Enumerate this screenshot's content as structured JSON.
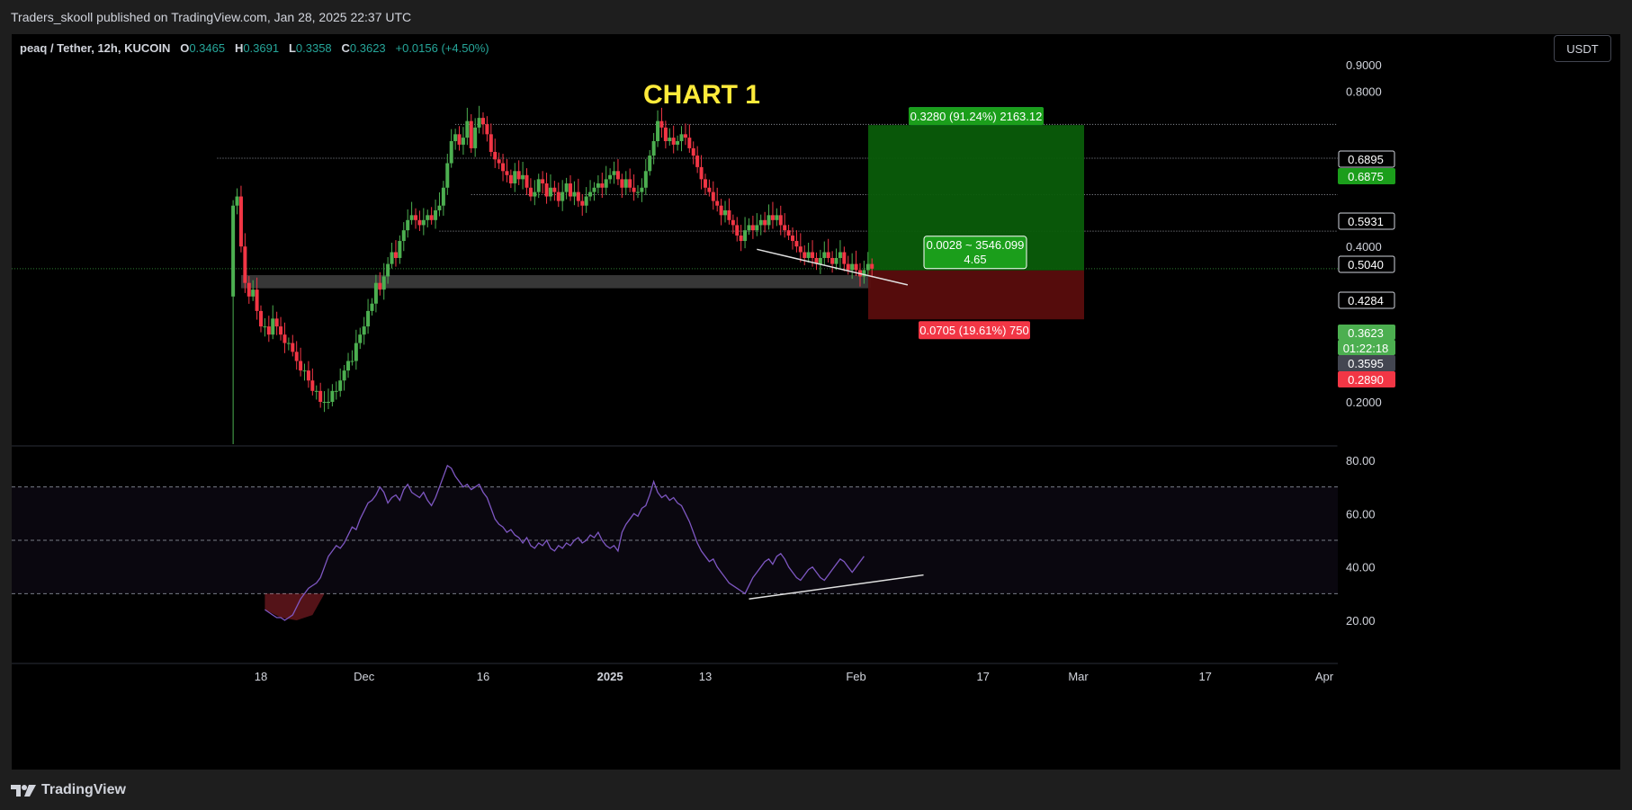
{
  "header": {
    "published_text": "Traders_skooll published on TradingView.com, Jan 28, 2025 22:37 UTC"
  },
  "symbol_bar": {
    "symbol": "peaq / Tether, 12h, KUCOIN",
    "o_label": "O",
    "o_value": "0.3465",
    "h_label": "H",
    "h_value": "0.3691",
    "l_label": "L",
    "l_value": "0.3358",
    "c_label": "C",
    "c_value": "0.3623",
    "change": "+0.0156 (+4.50%)"
  },
  "currency_button": "USDT",
  "footer": {
    "logo_text": "TradingView",
    "logo_icon": "tradingview-logo-icon"
  },
  "colors": {
    "up": "#4caf50",
    "down": "#f23645",
    "rsi": "#7e57c2",
    "target_zone": "#0a5c0a",
    "stop_zone": "#5a0d0d",
    "support_zone": "#4a4a4a",
    "annotation": "#ffeb3b"
  },
  "chart_data": {
    "type": "candlestick",
    "title": "CHART 1",
    "price_axis": {
      "ticks": [
        "0.9000",
        "0.8000",
        "0.4000",
        "0.2000"
      ],
      "scale": "log",
      "labels": [
        {
          "text": "0.6895",
          "value": 0.6895,
          "style": "plain"
        },
        {
          "text": "0.6875",
          "value": 0.6875,
          "style": "green"
        },
        {
          "text": "0.5931",
          "value": 0.5931,
          "style": "plain"
        },
        {
          "text": "0.5040",
          "value": 0.504,
          "style": "plain"
        },
        {
          "text": "0.4284",
          "value": 0.4284,
          "style": "plain"
        },
        {
          "text": "0.3623",
          "value": 0.3623,
          "style": "green-light"
        },
        {
          "text": "01:22:18",
          "value": 0.3623,
          "style": "green-light-countdown"
        },
        {
          "text": "0.3595",
          "value": 0.3595,
          "style": "gray"
        },
        {
          "text": "0.2890",
          "value": 0.289,
          "style": "red"
        }
      ]
    },
    "time_axis": {
      "ticks": [
        {
          "text": "18",
          "date": "2024-11-18",
          "bold": false
        },
        {
          "text": "Dec",
          "date": "2024-12-01",
          "bold": false
        },
        {
          "text": "16",
          "date": "2024-12-16",
          "bold": false
        },
        {
          "text": "2025",
          "date": "2025-01-01",
          "bold": true
        },
        {
          "text": "13",
          "date": "2025-01-13",
          "bold": false
        },
        {
          "text": "Feb",
          "date": "2025-02-01",
          "bold": false
        },
        {
          "text": "17",
          "date": "2025-02-17",
          "bold": false
        },
        {
          "text": "Mar",
          "date": "2025-03-01",
          "bold": false
        },
        {
          "text": "17",
          "date": "2025-03-17",
          "bold": false
        },
        {
          "text": "Apr",
          "date": "2025-04-01",
          "bold": false
        }
      ]
    },
    "candles_close": [
      0.48,
      0.5,
      0.4,
      0.34,
      0.32,
      0.33,
      0.3,
      0.28,
      0.28,
      0.27,
      0.29,
      0.28,
      0.27,
      0.26,
      0.26,
      0.25,
      0.24,
      0.23,
      0.23,
      0.22,
      0.21,
      0.21,
      0.2,
      0.2,
      0.2,
      0.21,
      0.21,
      0.22,
      0.23,
      0.24,
      0.24,
      0.26,
      0.27,
      0.28,
      0.3,
      0.31,
      0.34,
      0.33,
      0.35,
      0.37,
      0.39,
      0.38,
      0.41,
      0.43,
      0.45,
      0.46,
      0.45,
      0.44,
      0.45,
      0.46,
      0.45,
      0.47,
      0.48,
      0.52,
      0.58,
      0.64,
      0.66,
      0.63,
      0.65,
      0.7,
      0.62,
      0.68,
      0.71,
      0.69,
      0.66,
      0.61,
      0.59,
      0.58,
      0.56,
      0.55,
      0.53,
      0.56,
      0.54,
      0.55,
      0.52,
      0.5,
      0.51,
      0.54,
      0.53,
      0.5,
      0.52,
      0.51,
      0.49,
      0.51,
      0.53,
      0.5,
      0.51,
      0.49,
      0.48,
      0.5,
      0.51,
      0.52,
      0.53,
      0.52,
      0.54,
      0.55,
      0.56,
      0.54,
      0.52,
      0.54,
      0.52,
      0.51,
      0.51,
      0.52,
      0.56,
      0.6,
      0.64,
      0.7,
      0.68,
      0.64,
      0.65,
      0.63,
      0.64,
      0.66,
      0.65,
      0.62,
      0.6,
      0.57,
      0.54,
      0.52,
      0.51,
      0.49,
      0.48,
      0.46,
      0.47,
      0.45,
      0.44,
      0.42,
      0.41,
      0.43,
      0.44,
      0.43,
      0.44,
      0.45,
      0.44,
      0.46,
      0.45,
      0.46,
      0.44,
      0.43,
      0.42,
      0.41,
      0.4,
      0.39,
      0.38,
      0.39,
      0.38,
      0.37,
      0.38,
      0.39,
      0.38,
      0.37,
      0.38,
      0.39,
      0.37,
      0.36,
      0.37,
      0.36,
      0.35,
      0.36,
      0.37,
      0.3623
    ],
    "extra_lows": {
      "0": 0.14
    },
    "horizontal_levels": [
      0.6895,
      0.5931,
      0.504,
      0.4284,
      0.3623
    ],
    "support_zone": {
      "low": 0.332,
      "high": 0.352
    },
    "position": {
      "entry": 0.3595,
      "target": 0.6875,
      "stop": 0.289,
      "target_label": "0.3280 (91.24%) 2163.12",
      "stop_label": "0.0705 (19.61%) 750",
      "center_label_line1": "0.0028 ~ 3546.099",
      "center_label_line2": "4.65"
    },
    "rsi": {
      "ticks": [
        "80.00",
        "60.00",
        "40.00",
        "20.00"
      ],
      "upper": 70,
      "mid": 50,
      "lower": 30,
      "values": [
        24,
        23,
        22,
        21,
        21,
        20,
        21,
        22,
        25,
        28,
        30,
        32,
        33,
        34,
        36,
        40,
        44,
        46,
        48,
        47,
        49,
        52,
        55,
        54,
        58,
        61,
        64,
        65,
        67,
        70,
        68,
        64,
        66,
        67,
        65,
        69,
        71,
        68,
        67,
        66,
        68,
        65,
        63,
        66,
        70,
        74,
        78,
        77,
        74,
        72,
        70,
        71,
        69,
        70,
        71,
        68,
        66,
        62,
        58,
        56,
        55,
        53,
        54,
        52,
        51,
        49,
        51,
        48,
        47,
        49,
        48,
        50,
        47,
        46,
        48,
        47,
        49,
        48,
        50,
        51,
        49,
        50,
        52,
        51,
        53,
        50,
        48,
        47,
        48,
        46,
        53,
        56,
        58,
        60,
        59,
        62,
        63,
        67,
        72,
        68,
        66,
        67,
        65,
        66,
        64,
        63,
        60,
        57,
        53,
        49,
        46,
        44,
        42,
        43,
        40,
        38,
        36,
        34,
        33,
        32,
        31,
        30,
        33,
        36,
        38,
        40,
        42,
        43,
        41,
        44,
        45,
        43,
        40,
        38,
        36,
        35,
        37,
        39,
        40,
        38,
        36,
        35,
        37,
        39,
        41,
        43,
        42,
        40,
        38,
        40,
        42,
        44
      ]
    },
    "rsi_trendline": {
      "from_value": 28,
      "to_value": 37
    }
  }
}
